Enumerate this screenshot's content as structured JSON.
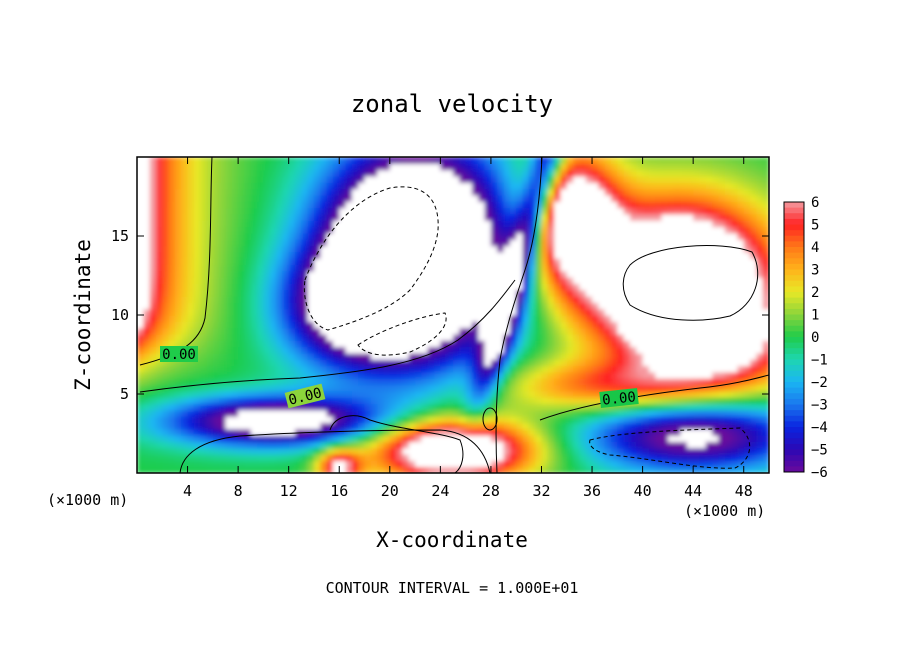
{
  "chart_data": {
    "type": "heatmap",
    "title": "zonal velocity",
    "xlabel": "X-coordinate",
    "ylabel": "Z-coordinate",
    "x_unit_label": "(×1000 m)",
    "footer": "CONTOUR INTERVAL = 1.000E+01",
    "xlim": [
      0,
      50
    ],
    "ylim": [
      0,
      20
    ],
    "x_ticks": [
      4,
      8,
      12,
      16,
      20,
      24,
      28,
      32,
      36,
      40,
      44,
      48
    ],
    "y_ticks": [
      5,
      10,
      15
    ],
    "colorbar": {
      "min": -6,
      "max": 6,
      "ticks": [
        6,
        5,
        4,
        3,
        2,
        1,
        0,
        -1,
        -2,
        -3,
        -4,
        -5,
        -6
      ],
      "saturated_region_color": "#ffffff"
    },
    "contour_labels": [
      {
        "text": "0.00",
        "x": 3,
        "z": 7.5
      },
      {
        "text": "0.00",
        "x": 13.4,
        "z": 4.5
      },
      {
        "text": "0.00",
        "x": 38.4,
        "z": 4.7
      }
    ],
    "field_features": [
      {
        "name": "left column",
        "x": 0,
        "z": 10,
        "value": 6
      },
      {
        "name": "low-level jet",
        "x": 12,
        "z": 3.5,
        "value": -6
      },
      {
        "name": "lower-right core",
        "x": 44,
        "z": 2.4,
        "value": -6
      },
      {
        "name": "upper-left void",
        "x": 22,
        "z": 14,
        "value": -12
      },
      {
        "name": "central tilted shear column",
        "x": 30,
        "z": 12,
        "value": -5
      },
      {
        "name": "upper-right void",
        "x": 42,
        "z": 12,
        "value": 12
      }
    ]
  }
}
